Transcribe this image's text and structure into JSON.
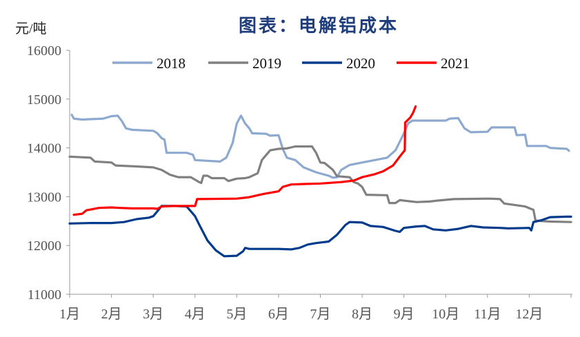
{
  "chart_data": {
    "type": "line",
    "title": "图表：电解铝成本",
    "ylabel": "元/吨",
    "xlabel": "",
    "ylim": [
      11000,
      16000
    ],
    "yticks": [
      11000,
      12000,
      13000,
      14000,
      15000,
      16000
    ],
    "categories": [
      "1月",
      "2月",
      "3月",
      "4月",
      "5月",
      "6月",
      "7月",
      "8月",
      "9月",
      "10月",
      "11月",
      "12月"
    ],
    "xlim": [
      1,
      13
    ],
    "grid": false,
    "legend_position": "top",
    "series": [
      {
        "name": "2018",
        "color": "#8EA9CF",
        "points": [
          [
            1.05,
            14680
          ],
          [
            1.1,
            14600
          ],
          [
            1.3,
            14580
          ],
          [
            1.8,
            14600
          ],
          [
            2.0,
            14650
          ],
          [
            2.15,
            14660
          ],
          [
            2.25,
            14550
          ],
          [
            2.35,
            14400
          ],
          [
            2.5,
            14370
          ],
          [
            3.0,
            14350
          ],
          [
            3.1,
            14300
          ],
          [
            3.2,
            14200
          ],
          [
            3.27,
            14170
          ],
          [
            3.32,
            13900
          ],
          [
            3.8,
            13900
          ],
          [
            3.95,
            13860
          ],
          [
            4.0,
            13750
          ],
          [
            4.6,
            13720
          ],
          [
            4.75,
            13800
          ],
          [
            4.9,
            14100
          ],
          [
            5.0,
            14500
          ],
          [
            5.1,
            14660
          ],
          [
            5.2,
            14500
          ],
          [
            5.3,
            14400
          ],
          [
            5.37,
            14300
          ],
          [
            5.7,
            14290
          ],
          [
            5.8,
            14250
          ],
          [
            6.0,
            14260
          ],
          [
            6.1,
            13980
          ],
          [
            6.2,
            13800
          ],
          [
            6.4,
            13750
          ],
          [
            6.6,
            13600
          ],
          [
            6.9,
            13500
          ],
          [
            7.2,
            13430
          ],
          [
            7.3,
            13390
          ],
          [
            7.4,
            13400
          ],
          [
            7.5,
            13550
          ],
          [
            7.7,
            13650
          ],
          [
            8.0,
            13700
          ],
          [
            8.3,
            13750
          ],
          [
            8.6,
            13800
          ],
          [
            8.8,
            13950
          ],
          [
            9.0,
            14300
          ],
          [
            9.1,
            14500
          ],
          [
            9.2,
            14560
          ],
          [
            10.0,
            14560
          ],
          [
            10.1,
            14600
          ],
          [
            10.3,
            14610
          ],
          [
            10.45,
            14400
          ],
          [
            10.6,
            14320
          ],
          [
            11.0,
            14330
          ],
          [
            11.1,
            14420
          ],
          [
            11.65,
            14420
          ],
          [
            11.7,
            14260
          ],
          [
            11.9,
            14270
          ],
          [
            11.95,
            14040
          ],
          [
            12.4,
            14040
          ],
          [
            12.5,
            14000
          ],
          [
            12.9,
            13980
          ],
          [
            12.95,
            13940
          ]
        ]
      },
      {
        "name": "2019",
        "color": "#808080",
        "points": [
          [
            1.0,
            13820
          ],
          [
            1.5,
            13800
          ],
          [
            1.6,
            13720
          ],
          [
            2.0,
            13700
          ],
          [
            2.1,
            13640
          ],
          [
            2.6,
            13620
          ],
          [
            3.0,
            13600
          ],
          [
            3.2,
            13550
          ],
          [
            3.4,
            13450
          ],
          [
            3.6,
            13400
          ],
          [
            3.9,
            13400
          ],
          [
            4.1,
            13300
          ],
          [
            4.15,
            13280
          ],
          [
            4.2,
            13430
          ],
          [
            4.3,
            13430
          ],
          [
            4.4,
            13380
          ],
          [
            4.7,
            13380
          ],
          [
            4.8,
            13320
          ],
          [
            5.0,
            13370
          ],
          [
            5.2,
            13380
          ],
          [
            5.3,
            13400
          ],
          [
            5.5,
            13480
          ],
          [
            5.6,
            13750
          ],
          [
            5.8,
            13950
          ],
          [
            6.0,
            13980
          ],
          [
            6.2,
            13990
          ],
          [
            6.4,
            14030
          ],
          [
            6.8,
            14030
          ],
          [
            6.9,
            13900
          ],
          [
            7.0,
            13700
          ],
          [
            7.1,
            13690
          ],
          [
            7.3,
            13550
          ],
          [
            7.4,
            13420
          ],
          [
            7.7,
            13400
          ],
          [
            7.8,
            13300
          ],
          [
            7.9,
            13270
          ],
          [
            8.0,
            13200
          ],
          [
            8.1,
            13040
          ],
          [
            8.6,
            13030
          ],
          [
            8.65,
            12870
          ],
          [
            8.8,
            12870
          ],
          [
            8.9,
            12930
          ],
          [
            9.3,
            12890
          ],
          [
            9.6,
            12900
          ],
          [
            9.8,
            12920
          ],
          [
            10.2,
            12950
          ],
          [
            11.05,
            12960
          ],
          [
            11.3,
            12950
          ],
          [
            11.4,
            12860
          ],
          [
            11.9,
            12800
          ],
          [
            12.1,
            12730
          ],
          [
            12.15,
            12510
          ],
          [
            12.5,
            12490
          ],
          [
            13.0,
            12480
          ]
        ]
      },
      {
        "name": "2020",
        "color": "#003A8C",
        "points": [
          [
            1.0,
            12450
          ],
          [
            1.5,
            12460
          ],
          [
            2.0,
            12460
          ],
          [
            2.3,
            12480
          ],
          [
            2.6,
            12540
          ],
          [
            2.9,
            12570
          ],
          [
            3.0,
            12600
          ],
          [
            3.1,
            12700
          ],
          [
            3.2,
            12810
          ],
          [
            3.5,
            12810
          ],
          [
            3.8,
            12800
          ],
          [
            3.9,
            12700
          ],
          [
            4.0,
            12600
          ],
          [
            4.1,
            12430
          ],
          [
            4.3,
            12100
          ],
          [
            4.5,
            11900
          ],
          [
            4.7,
            11780
          ],
          [
            5.0,
            11790
          ],
          [
            5.15,
            11880
          ],
          [
            5.2,
            11950
          ],
          [
            5.3,
            11930
          ],
          [
            6.0,
            11930
          ],
          [
            6.3,
            11920
          ],
          [
            6.5,
            11950
          ],
          [
            6.7,
            12020
          ],
          [
            6.9,
            12050
          ],
          [
            7.2,
            12080
          ],
          [
            7.4,
            12220
          ],
          [
            7.6,
            12420
          ],
          [
            7.7,
            12480
          ],
          [
            8.0,
            12470
          ],
          [
            8.2,
            12400
          ],
          [
            8.5,
            12380
          ],
          [
            8.8,
            12300
          ],
          [
            8.9,
            12280
          ],
          [
            9.0,
            12360
          ],
          [
            9.3,
            12390
          ],
          [
            9.5,
            12400
          ],
          [
            9.7,
            12330
          ],
          [
            10.0,
            12310
          ],
          [
            10.3,
            12340
          ],
          [
            10.6,
            12400
          ],
          [
            10.9,
            12370
          ],
          [
            11.3,
            12360
          ],
          [
            11.5,
            12350
          ],
          [
            12.0,
            12360
          ],
          [
            12.05,
            12310
          ],
          [
            12.1,
            12480
          ],
          [
            12.3,
            12520
          ],
          [
            12.5,
            12580
          ],
          [
            12.9,
            12590
          ],
          [
            13.0,
            12590
          ]
        ]
      },
      {
        "name": "2021",
        "color": "#FF0000",
        "points": [
          [
            1.1,
            12630
          ],
          [
            1.3,
            12650
          ],
          [
            1.4,
            12720
          ],
          [
            1.7,
            12770
          ],
          [
            2.0,
            12780
          ],
          [
            2.2,
            12770
          ],
          [
            2.5,
            12760
          ],
          [
            3.0,
            12760
          ],
          [
            3.1,
            12750
          ],
          [
            3.2,
            12800
          ],
          [
            3.5,
            12810
          ],
          [
            4.0,
            12810
          ],
          [
            4.05,
            12950
          ],
          [
            5.0,
            12960
          ],
          [
            5.3,
            12990
          ],
          [
            5.6,
            13050
          ],
          [
            6.0,
            13110
          ],
          [
            6.1,
            13200
          ],
          [
            6.3,
            13250
          ],
          [
            6.6,
            13260
          ],
          [
            7.0,
            13270
          ],
          [
            7.5,
            13300
          ],
          [
            7.8,
            13330
          ],
          [
            8.0,
            13400
          ],
          [
            8.3,
            13460
          ],
          [
            8.5,
            13520
          ],
          [
            8.74,
            13640
          ],
          [
            8.9,
            13820
          ],
          [
            9.02,
            13950
          ],
          [
            9.03,
            14520
          ],
          [
            9.15,
            14620
          ],
          [
            9.22,
            14720
          ],
          [
            9.28,
            14850
          ]
        ]
      }
    ]
  }
}
